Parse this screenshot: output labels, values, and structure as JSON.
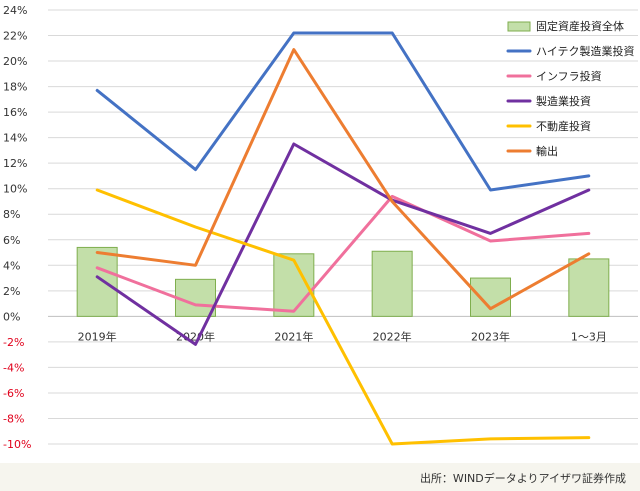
{
  "source_note": "出所：WINDデータよりアイザワ証券作成",
  "colors": {
    "grid": "#d9d9d9",
    "zero_line": "#bfbfbf",
    "positive_tick": "#333333",
    "negative_tick": "#e0001b",
    "footer_bg": "#f6f5ee"
  },
  "chart_data": {
    "type": "bar+line",
    "title": "",
    "xlabel": "",
    "ylabel": "",
    "ylim": [
      -10,
      24
    ],
    "y_ticks": [
      "24%",
      "22%",
      "20%",
      "18%",
      "16%",
      "14%",
      "12%",
      "10%",
      "8%",
      "6%",
      "4%",
      "2%",
      "0%",
      "-2%",
      "-4%",
      "-6%",
      "-8%",
      "-10%"
    ],
    "categories": [
      "2019年",
      "2020年",
      "2021年",
      "2022年",
      "2023年",
      "1～3月"
    ],
    "grid": true,
    "legend_position": "top-right",
    "series": [
      {
        "name": "固定資産投資全体",
        "type": "bar",
        "color": "#c3dfa9",
        "stroke": "#7fae4e",
        "values": [
          5.4,
          2.9,
          4.9,
          5.1,
          3.0,
          4.5
        ]
      },
      {
        "name": "ハイテク製造業投資",
        "type": "line",
        "color": "#4472c4",
        "values": [
          17.7,
          11.5,
          22.2,
          22.2,
          9.9,
          11.0
        ]
      },
      {
        "name": "インフラ投資",
        "type": "line",
        "color": "#f0709c",
        "values": [
          3.8,
          0.9,
          0.4,
          9.4,
          5.9,
          6.5
        ]
      },
      {
        "name": "製造業投資",
        "type": "line",
        "color": "#7030a0",
        "values": [
          3.1,
          -2.2,
          13.5,
          9.1,
          6.5,
          9.9
        ]
      },
      {
        "name": "不動産投資",
        "type": "line",
        "color": "#ffc000",
        "values": [
          9.9,
          7.0,
          4.4,
          -10.0,
          -9.6,
          -9.5
        ]
      },
      {
        "name": "輸出",
        "type": "line",
        "color": "#ed7d31",
        "values": [
          5.0,
          4.0,
          20.9,
          9.0,
          0.6,
          4.9
        ]
      }
    ]
  }
}
